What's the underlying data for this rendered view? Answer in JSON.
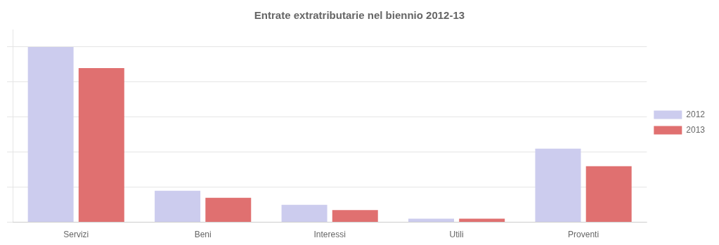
{
  "chart_data": {
    "type": "bar",
    "title": "Entrate extratributarie nel biennio 2012-13",
    "categories": [
      "Servizi",
      "Beni",
      "Interessi",
      "Utili",
      "Proventi"
    ],
    "series": [
      {
        "name": "2012",
        "color": "#ccccee",
        "values": [
          100,
          18,
          10,
          2,
          42
        ]
      },
      {
        "name": "2013",
        "color": "#e07070",
        "values": [
          88,
          14,
          7,
          2,
          32
        ]
      }
    ],
    "ylim": [
      0,
      110
    ],
    "yticks": [
      0,
      20,
      40,
      60,
      80,
      100
    ],
    "grid": true,
    "legend": "right",
    "tick_labels": "x"
  }
}
